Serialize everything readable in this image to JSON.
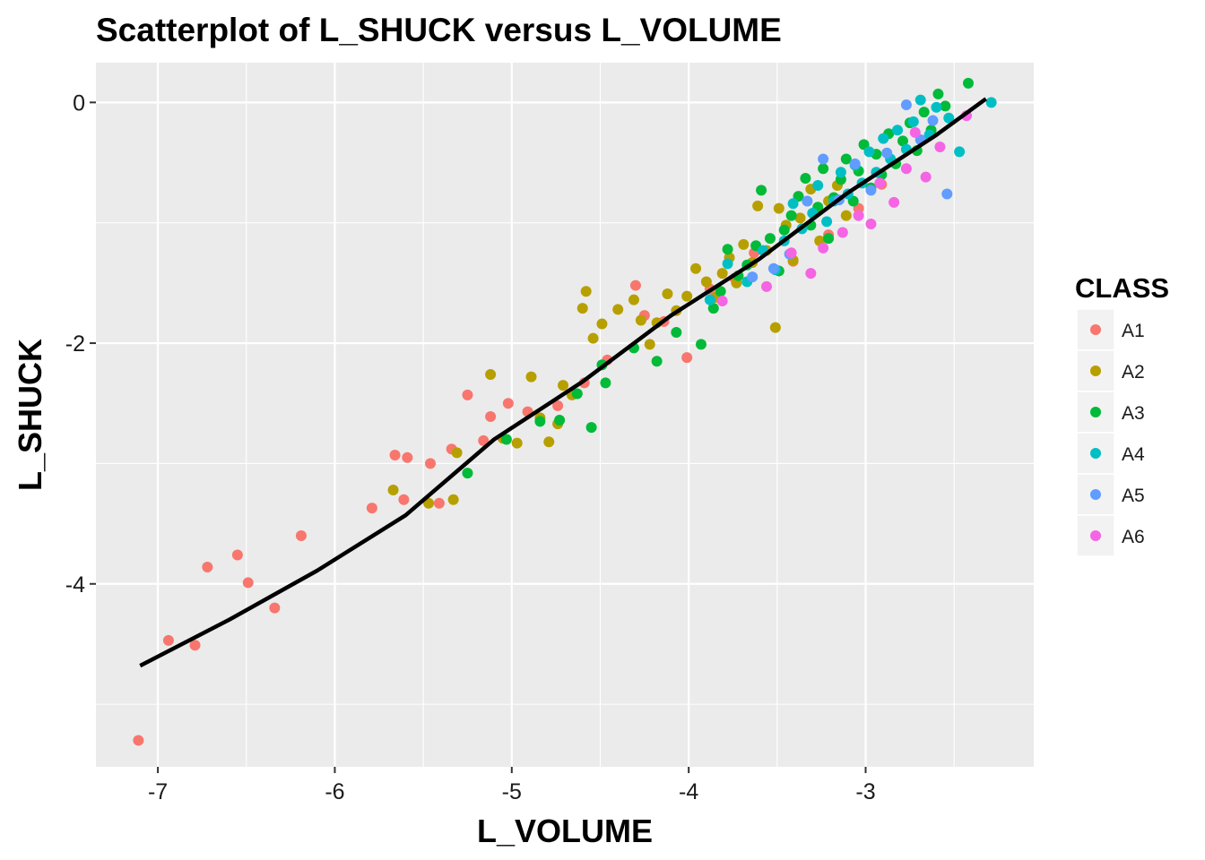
{
  "chart_data": {
    "type": "scatter",
    "title": "Scatterplot of L_SHUCK versus L_VOLUME",
    "xlabel": "L_VOLUME",
    "ylabel": "L_SHUCK",
    "xlim": [
      -7.35,
      -2.05
    ],
    "ylim": [
      -5.52,
      0.33
    ],
    "x_ticks": [
      -7,
      -6,
      -5,
      -4,
      -3
    ],
    "y_ticks": [
      -4,
      -2,
      0
    ],
    "x_tick_labels": [
      "-7",
      "-6",
      "-5",
      "-4",
      "-3"
    ],
    "y_tick_labels": [
      "-4",
      "-2",
      "0"
    ],
    "grid": true,
    "panel_background": "#ebebeb",
    "grid_color": "#ffffff",
    "legend": {
      "title": "CLASS",
      "position": "right"
    },
    "series": [
      {
        "name": "A1",
        "color": "#F8766D",
        "points": [
          [
            -7.11,
            -5.3
          ],
          [
            -6.94,
            -4.47
          ],
          [
            -6.79,
            -4.51
          ],
          [
            -6.72,
            -3.86
          ],
          [
            -6.55,
            -3.76
          ],
          [
            -6.49,
            -3.99
          ],
          [
            -6.34,
            -4.2
          ],
          [
            -6.19,
            -3.6
          ],
          [
            -5.79,
            -3.37
          ],
          [
            -5.66,
            -2.93
          ],
          [
            -5.61,
            -3.3
          ],
          [
            -5.59,
            -2.95
          ],
          [
            -5.46,
            -3.0
          ],
          [
            -5.41,
            -3.33
          ],
          [
            -5.34,
            -2.88
          ],
          [
            -5.25,
            -2.43
          ],
          [
            -5.16,
            -2.81
          ],
          [
            -5.12,
            -2.61
          ],
          [
            -5.02,
            -2.5
          ],
          [
            -4.91,
            -2.57
          ],
          [
            -4.74,
            -2.52
          ],
          [
            -4.59,
            -2.33
          ],
          [
            -4.46,
            -2.14
          ],
          [
            -4.3,
            -1.52
          ],
          [
            -4.25,
            -1.77
          ],
          [
            -4.14,
            -1.82
          ],
          [
            -4.01,
            -2.12
          ],
          [
            -3.88,
            -1.55
          ],
          [
            -3.74,
            -1.46
          ],
          [
            -3.63,
            -1.25
          ],
          [
            -3.41,
            -1.32
          ],
          [
            -3.21,
            -1.1
          ],
          [
            -3.04,
            -0.88
          ],
          [
            -2.91,
            -0.68
          ]
        ]
      },
      {
        "name": "A2",
        "color": "#B79F00",
        "points": [
          [
            -5.67,
            -3.22
          ],
          [
            -5.47,
            -3.33
          ],
          [
            -5.33,
            -3.3
          ],
          [
            -5.31,
            -2.91
          ],
          [
            -5.12,
            -2.26
          ],
          [
            -5.05,
            -2.79
          ],
          [
            -4.97,
            -2.83
          ],
          [
            -4.89,
            -2.28
          ],
          [
            -4.84,
            -2.62
          ],
          [
            -4.79,
            -2.82
          ],
          [
            -4.74,
            -2.67
          ],
          [
            -4.71,
            -2.35
          ],
          [
            -4.66,
            -2.43
          ],
          [
            -4.6,
            -1.71
          ],
          [
            -4.58,
            -1.57
          ],
          [
            -4.54,
            -1.96
          ],
          [
            -4.49,
            -1.84
          ],
          [
            -4.4,
            -1.72
          ],
          [
            -4.31,
            -1.64
          ],
          [
            -4.27,
            -1.81
          ],
          [
            -4.22,
            -2.01
          ],
          [
            -4.18,
            -1.83
          ],
          [
            -4.12,
            -1.59
          ],
          [
            -4.07,
            -1.73
          ],
          [
            -4.01,
            -1.61
          ],
          [
            -3.96,
            -1.38
          ],
          [
            -3.9,
            -1.49
          ],
          [
            -3.85,
            -1.62
          ],
          [
            -3.81,
            -1.42
          ],
          [
            -3.77,
            -1.29
          ],
          [
            -3.73,
            -1.5
          ],
          [
            -3.69,
            -1.18
          ],
          [
            -3.64,
            -1.33
          ],
          [
            -3.61,
            -0.86
          ],
          [
            -3.56,
            -1.23
          ],
          [
            -3.51,
            -1.87
          ],
          [
            -3.49,
            -0.88
          ],
          [
            -3.45,
            -1.02
          ],
          [
            -3.41,
            -1.31
          ],
          [
            -3.37,
            -0.96
          ],
          [
            -3.31,
            -0.72
          ],
          [
            -3.26,
            -1.15
          ],
          [
            -3.21,
            -0.82
          ],
          [
            -3.16,
            -0.69
          ],
          [
            -3.11,
            -0.94
          ]
        ]
      },
      {
        "name": "A3",
        "color": "#00BA38",
        "points": [
          [
            -5.25,
            -3.08
          ],
          [
            -5.03,
            -2.8
          ],
          [
            -4.84,
            -2.65
          ],
          [
            -4.73,
            -2.64
          ],
          [
            -4.63,
            -2.42
          ],
          [
            -4.55,
            -2.7
          ],
          [
            -4.49,
            -2.18
          ],
          [
            -4.47,
            -2.33
          ],
          [
            -4.31,
            -2.04
          ],
          [
            -4.18,
            -2.15
          ],
          [
            -4.07,
            -1.91
          ],
          [
            -3.93,
            -2.01
          ],
          [
            -3.86,
            -1.71
          ],
          [
            -3.82,
            -1.57
          ],
          [
            -3.78,
            -1.22
          ],
          [
            -3.72,
            -1.44
          ],
          [
            -3.67,
            -1.35
          ],
          [
            -3.62,
            -1.19
          ],
          [
            -3.59,
            -0.73
          ],
          [
            -3.54,
            -1.13
          ],
          [
            -3.49,
            -1.4
          ],
          [
            -3.46,
            -1.06
          ],
          [
            -3.42,
            -0.94
          ],
          [
            -3.38,
            -0.78
          ],
          [
            -3.34,
            -0.63
          ],
          [
            -3.31,
            -1.02
          ],
          [
            -3.27,
            -0.87
          ],
          [
            -3.24,
            -0.55
          ],
          [
            -3.21,
            -1.13
          ],
          [
            -3.18,
            -0.79
          ],
          [
            -3.14,
            -0.64
          ],
          [
            -3.11,
            -0.47
          ],
          [
            -3.07,
            -0.82
          ],
          [
            -3.04,
            -0.57
          ],
          [
            -3.01,
            -0.35
          ],
          [
            -2.97,
            -0.71
          ],
          [
            -2.94,
            -0.43
          ],
          [
            -2.91,
            -0.6
          ],
          [
            -2.87,
            -0.26
          ],
          [
            -2.83,
            -0.51
          ],
          [
            -2.79,
            -0.32
          ],
          [
            -2.75,
            -0.17
          ],
          [
            -2.71,
            -0.4
          ],
          [
            -2.67,
            -0.08
          ],
          [
            -2.63,
            -0.23
          ],
          [
            -2.59,
            0.07
          ],
          [
            -2.55,
            -0.03
          ],
          [
            -2.42,
            0.16
          ]
        ]
      },
      {
        "name": "A4",
        "color": "#00BFC4",
        "points": [
          [
            -3.88,
            -1.64
          ],
          [
            -3.78,
            -1.34
          ],
          [
            -3.67,
            -1.49
          ],
          [
            -3.58,
            -1.23
          ],
          [
            -3.51,
            -1.39
          ],
          [
            -3.46,
            -1.15
          ],
          [
            -3.41,
            -0.84
          ],
          [
            -3.36,
            -1.05
          ],
          [
            -3.3,
            -0.92
          ],
          [
            -3.27,
            -0.69
          ],
          [
            -3.22,
            -0.99
          ],
          [
            -3.18,
            -0.82
          ],
          [
            -3.14,
            -0.58
          ],
          [
            -3.1,
            -0.76
          ],
          [
            -3.06,
            -0.52
          ],
          [
            -3.02,
            -0.67
          ],
          [
            -2.98,
            -0.41
          ],
          [
            -2.94,
            -0.58
          ],
          [
            -2.9,
            -0.3
          ],
          [
            -2.86,
            -0.47
          ],
          [
            -2.82,
            -0.23
          ],
          [
            -2.77,
            -0.39
          ],
          [
            -2.73,
            -0.16
          ],
          [
            -2.69,
            0.02
          ],
          [
            -2.64,
            -0.27
          ],
          [
            -2.6,
            -0.04
          ],
          [
            -2.53,
            -0.13
          ],
          [
            -2.47,
            -0.41
          ],
          [
            -2.29,
            0.0
          ]
        ]
      },
      {
        "name": "A5",
        "color": "#619CFF",
        "points": [
          [
            -3.64,
            -1.45
          ],
          [
            -3.52,
            -1.38
          ],
          [
            -3.43,
            -1.26
          ],
          [
            -3.33,
            -0.82
          ],
          [
            -3.24,
            -0.47
          ],
          [
            -3.15,
            -0.81
          ],
          [
            -3.06,
            -0.51
          ],
          [
            -2.97,
            -0.73
          ],
          [
            -2.88,
            -0.42
          ],
          [
            -2.77,
            -0.02
          ],
          [
            -2.69,
            -0.31
          ],
          [
            -2.62,
            -0.15
          ],
          [
            -2.54,
            -0.76
          ]
        ]
      },
      {
        "name": "A6",
        "color": "#F564E3",
        "points": [
          [
            -3.81,
            -1.65
          ],
          [
            -3.56,
            -1.53
          ],
          [
            -3.42,
            -1.25
          ],
          [
            -3.31,
            -1.42
          ],
          [
            -3.24,
            -1.21
          ],
          [
            -3.13,
            -1.08
          ],
          [
            -3.04,
            -0.94
          ],
          [
            -2.97,
            -1.01
          ],
          [
            -2.92,
            -0.67
          ],
          [
            -2.84,
            -0.83
          ],
          [
            -2.77,
            -0.55
          ],
          [
            -2.72,
            -0.25
          ],
          [
            -2.66,
            -0.62
          ],
          [
            -2.58,
            -0.37
          ],
          [
            -2.43,
            -0.11
          ]
        ]
      }
    ],
    "fit_line": {
      "color": "#000000",
      "points": [
        [
          -7.1,
          -4.68
        ],
        [
          -6.6,
          -4.3
        ],
        [
          -6.1,
          -3.89
        ],
        [
          -5.6,
          -3.43
        ],
        [
          -5.1,
          -2.8
        ],
        [
          -4.6,
          -2.32
        ],
        [
          -4.1,
          -1.77
        ],
        [
          -3.6,
          -1.3
        ],
        [
          -3.1,
          -0.75
        ],
        [
          -2.6,
          -0.27
        ],
        [
          -2.32,
          0.03
        ]
      ]
    }
  }
}
